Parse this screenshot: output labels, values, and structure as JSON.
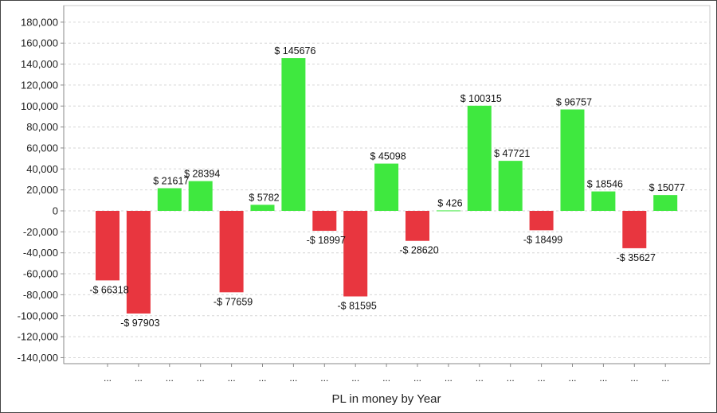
{
  "chart_data": {
    "type": "bar",
    "title": "",
    "xlabel": "PL in money by Year",
    "ylabel": "",
    "ylim": [
      -150000,
      190000
    ],
    "yticks": [
      180000,
      160000,
      140000,
      120000,
      100000,
      80000,
      60000,
      40000,
      20000,
      0,
      -20000,
      -40000,
      -60000,
      -80000,
      -100000,
      -120000,
      -140000
    ],
    "ytick_labels": [
      "180,000",
      "160,000",
      "140,000",
      "120,000",
      "100,000",
      "80,000",
      "60,000",
      "40,000",
      "20,000",
      "0",
      "-20,000",
      "-40,000",
      "-60,000",
      "-80,000",
      "-100,000",
      "-120,000",
      "-140,000"
    ],
    "categories": [
      "...",
      "...",
      "...",
      "...",
      "...",
      "...",
      "...",
      "...",
      "...",
      "...",
      "...",
      "...",
      "...",
      "...",
      "...",
      "...",
      "...",
      "...",
      "..."
    ],
    "values": [
      -66318,
      -97903,
      21617,
      28394,
      -77659,
      5782,
      145676,
      -18997,
      -81595,
      45098,
      -28620,
      426,
      100315,
      47721,
      -18499,
      96757,
      18546,
      -35627,
      15077
    ],
    "data_labels": [
      "-$ 66318",
      "-$ 97903",
      "$ 21617",
      "$ 28394",
      "-$ 77659",
      "$ 5782",
      "$ 145676",
      "-$ 18997",
      "-$ 81595",
      "$ 45098",
      "-$ 28620",
      "$ 426",
      "$ 100315",
      "$ 47721",
      "-$ 18499",
      "$ 96757",
      "$ 18546",
      "-$ 35627",
      "$ 15077"
    ],
    "positive_color": "#3fe83f",
    "negative_color": "#e8363f",
    "grid": true,
    "legend": "none"
  }
}
